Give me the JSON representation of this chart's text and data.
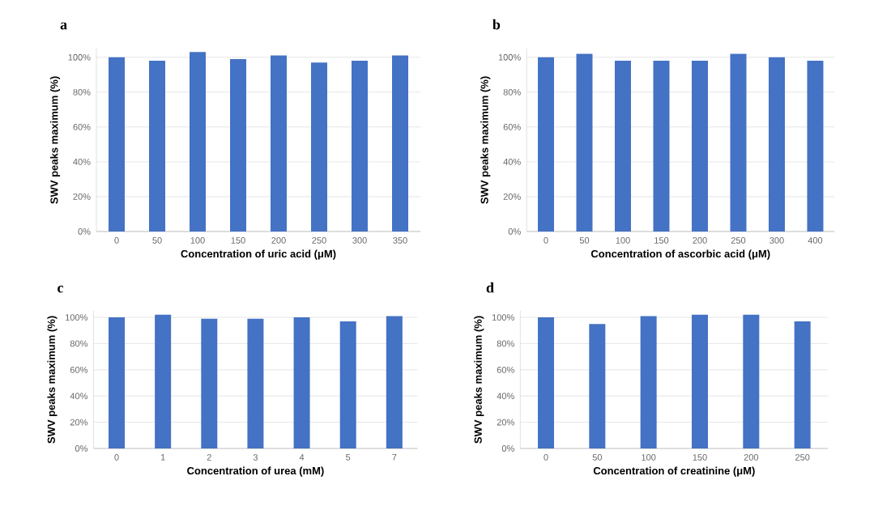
{
  "chart_data": [
    {
      "type": "bar",
      "title": "a",
      "xlabel": "Concentration of uric acid (μM)",
      "ylabel": "SWV peaks maximum (%)",
      "categories": [
        "0",
        "50",
        "100",
        "150",
        "200",
        "250",
        "300",
        "350"
      ],
      "values": [
        100,
        98,
        103,
        99,
        101,
        97,
        98,
        101
      ],
      "color": "#4472c4",
      "ylim": [
        0,
        105
      ],
      "yticks": [
        {
          "value": 0,
          "label": "0%"
        },
        {
          "value": 20,
          "label": "20%"
        },
        {
          "value": 40,
          "label": "40%"
        },
        {
          "value": 60,
          "label": "60%"
        },
        {
          "value": 80,
          "label": "80%"
        },
        {
          "value": 100,
          "label": "100%"
        }
      ],
      "grid": "y"
    },
    {
      "type": "bar",
      "title": "b",
      "xlabel": "Concentration of ascorbic acid (μM)",
      "ylabel": "SWV peaks maximum (%)",
      "categories": [
        "0",
        "50",
        "100",
        "150",
        "200",
        "250",
        "300",
        "400"
      ],
      "values": [
        100,
        102,
        98,
        98,
        98,
        102,
        100,
        98
      ],
      "color": "#4472c4",
      "ylim": [
        0,
        105
      ],
      "yticks": [
        {
          "value": 0,
          "label": "0%"
        },
        {
          "value": 20,
          "label": "20%"
        },
        {
          "value": 40,
          "label": "40%"
        },
        {
          "value": 60,
          "label": "60%"
        },
        {
          "value": 80,
          "label": "80%"
        },
        {
          "value": 100,
          "label": "100%"
        }
      ],
      "grid": "y"
    },
    {
      "type": "bar",
      "title": "c",
      "xlabel": "Concentration of urea (mM)",
      "ylabel": "SWV peaks maximum (%)",
      "categories": [
        "0",
        "1",
        "2",
        "3",
        "4",
        "5",
        "7"
      ],
      "values": [
        100,
        102,
        99,
        99,
        100,
        97,
        101
      ],
      "color": "#4472c4",
      "ylim": [
        0,
        105
      ],
      "yticks": [
        {
          "value": 0,
          "label": "0%"
        },
        {
          "value": 20,
          "label": "20%"
        },
        {
          "value": 40,
          "label": "40%"
        },
        {
          "value": 60,
          "label": "60%"
        },
        {
          "value": 80,
          "label": "80%"
        },
        {
          "value": 100,
          "label": "100%"
        }
      ],
      "grid": "y"
    },
    {
      "type": "bar",
      "title": "d",
      "xlabel": "Concentration of creatinine (μM)",
      "ylabel": "SWV peaks maximum (%)",
      "categories": [
        "0",
        "50",
        "100",
        "150",
        "200",
        "250"
      ],
      "values": [
        100,
        95,
        101,
        102,
        102,
        97
      ],
      "color": "#4472c4",
      "ylim": [
        0,
        105
      ],
      "yticks": [
        {
          "value": 0,
          "label": "0%"
        },
        {
          "value": 20,
          "label": "20%"
        },
        {
          "value": 40,
          "label": "40%"
        },
        {
          "value": 60,
          "label": "60%"
        },
        {
          "value": 80,
          "label": "80%"
        },
        {
          "value": 100,
          "label": "100%"
        }
      ],
      "grid": "y"
    }
  ]
}
